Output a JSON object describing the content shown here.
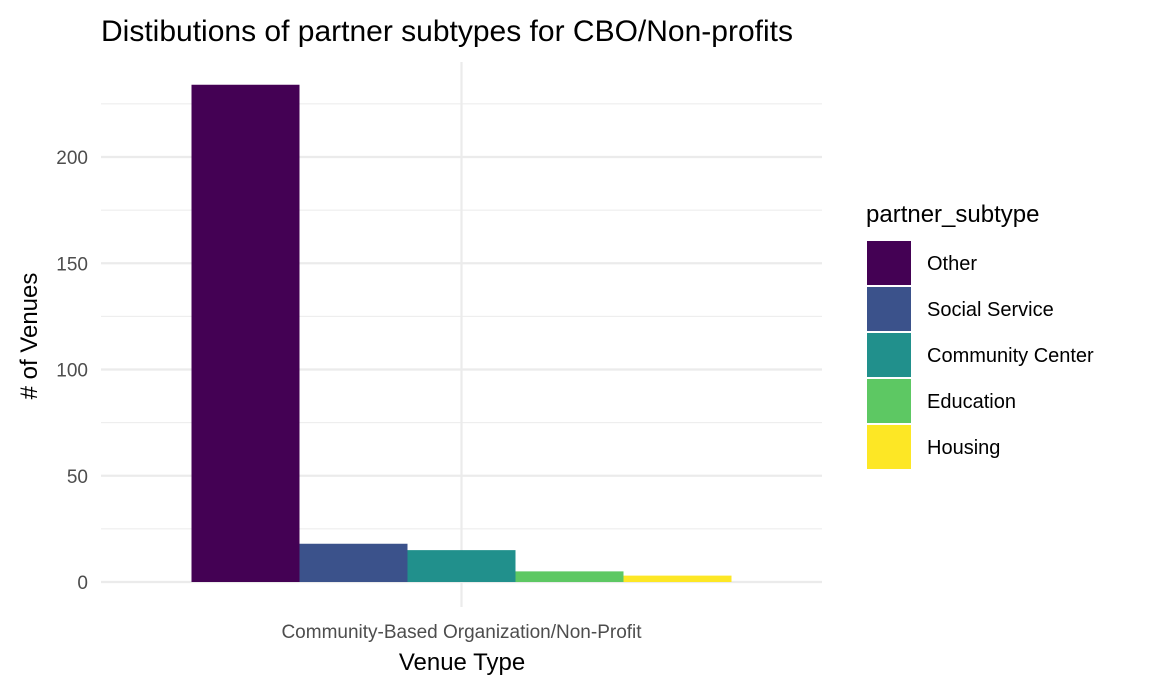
{
  "chart_data": {
    "type": "bar",
    "title": "Distibutions of partner subtypes for CBO/Non-profits",
    "xlabel": "Venue Type",
    "ylabel": "# of Venues",
    "categories": [
      "Community-Based Organization/Non-Profit"
    ],
    "series": [
      {
        "name": "Other",
        "values": [
          234
        ],
        "color": "#440154"
      },
      {
        "name": "Social Service",
        "values": [
          18
        ],
        "color": "#3B528B"
      },
      {
        "name": "Community Center",
        "values": [
          15
        ],
        "color": "#21908C"
      },
      {
        "name": "Education",
        "values": [
          5
        ],
        "color": "#5DC863"
      },
      {
        "name": "Housing",
        "values": [
          3
        ],
        "color": "#FDE725"
      }
    ],
    "y_ticks": [
      0,
      50,
      100,
      150,
      200
    ],
    "ylim": [
      0,
      245
    ],
    "grid": true,
    "legend": {
      "title": "partner_subtype",
      "position": "right"
    }
  }
}
